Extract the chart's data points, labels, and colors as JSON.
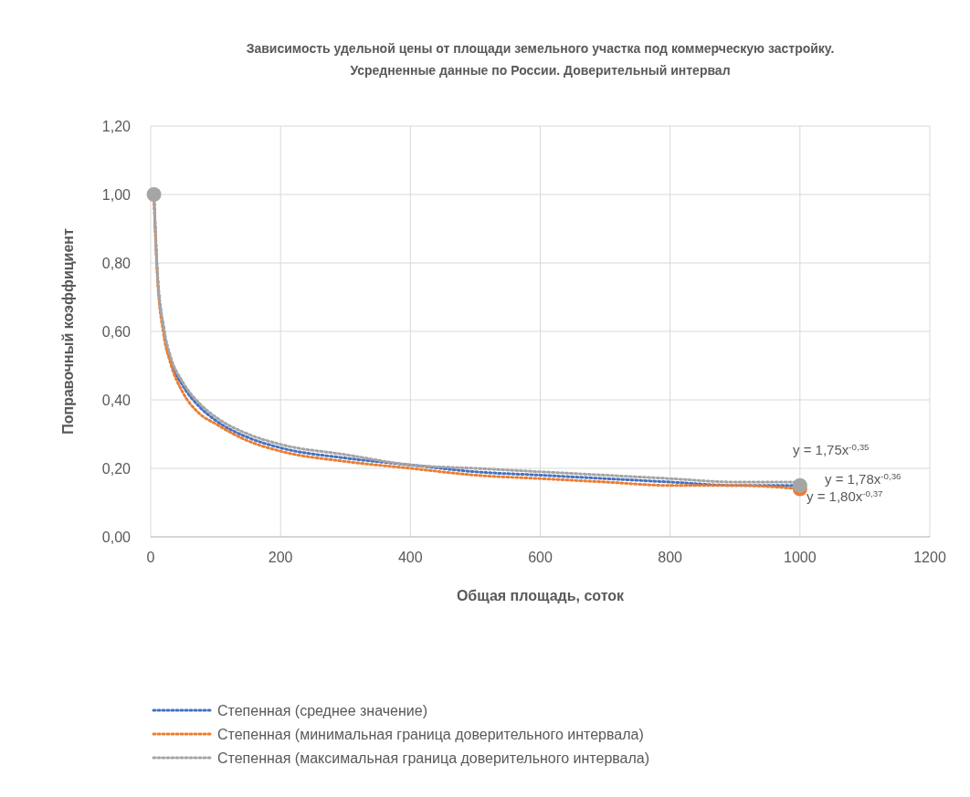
{
  "chart_data": {
    "type": "line",
    "title": "Зависимость удельной цены от площади земельного участка под коммерческую застройку. Усредненные данные по России. Доверительный интервал",
    "xlabel": "Общая площадь, соток",
    "ylabel": "Поправочный коэффициент",
    "xlim": [
      0,
      1200
    ],
    "xticks": [
      0,
      200,
      400,
      600,
      800,
      1000,
      1200
    ],
    "ylim": [
      0,
      1.2
    ],
    "yticks": [
      {
        "value": 0,
        "label": "0,00"
      },
      {
        "value": 0.2,
        "label": "0,20"
      },
      {
        "value": 0.4,
        "label": "0,40"
      },
      {
        "value": 0.6,
        "label": "0,60"
      },
      {
        "value": 0.8,
        "label": "0,80"
      },
      {
        "value": 1,
        "label": "1,00"
      },
      {
        "value": 1.2,
        "label": "1,20"
      }
    ],
    "grid": true,
    "legend": "bottom",
    "line_style": "dotted",
    "x": [
      5,
      10,
      20,
      30,
      50,
      75,
      100,
      150,
      200,
      300,
      400,
      500,
      600,
      700,
      800,
      900,
      1000
    ],
    "series": [
      {
        "name": "Степенная (среднее значение)",
        "color": "#4472c4",
        "values": [
          1.0,
          0.78,
          0.61,
          0.52,
          0.44,
          0.38,
          0.34,
          0.29,
          0.26,
          0.23,
          0.21,
          0.19,
          0.18,
          0.17,
          0.16,
          0.15,
          0.15
        ]
      },
      {
        "name": "Степенная (минимальная граница доверительного интервала)",
        "color": "#ed7d31",
        "values": [
          0.99,
          0.77,
          0.59,
          0.51,
          0.42,
          0.36,
          0.33,
          0.28,
          0.25,
          0.22,
          0.2,
          0.18,
          0.17,
          0.16,
          0.15,
          0.15,
          0.14
        ]
      },
      {
        "name": "Степенная (максимальная граница доверительного интервала)",
        "color": "#a5a5a5",
        "values": [
          1.0,
          0.78,
          0.61,
          0.53,
          0.45,
          0.39,
          0.35,
          0.3,
          0.27,
          0.24,
          0.21,
          0.2,
          0.19,
          0.18,
          0.17,
          0.16,
          0.16
        ]
      },
      {
        "type": "scatter",
        "color": "#ed7d31",
        "values": [
          null,
          null,
          null,
          null,
          null,
          null,
          null,
          null,
          null,
          null,
          null,
          null,
          null,
          null,
          null,
          null,
          0.14
        ],
        "marker": "circle"
      },
      {
        "type": "scatter",
        "color": "#a5a5a5",
        "values": [
          1.0,
          null,
          null,
          null,
          null,
          null,
          null,
          null,
          null,
          null,
          null,
          null,
          null,
          null,
          null,
          null,
          0.15
        ],
        "marker": "circle"
      }
    ],
    "annotations": [
      "y = 1,75x$^{-0,35}$",
      "y = 1,78x$^{-0,36}$",
      "y = 1,80x$^{-0,37}$"
    ]
  }
}
